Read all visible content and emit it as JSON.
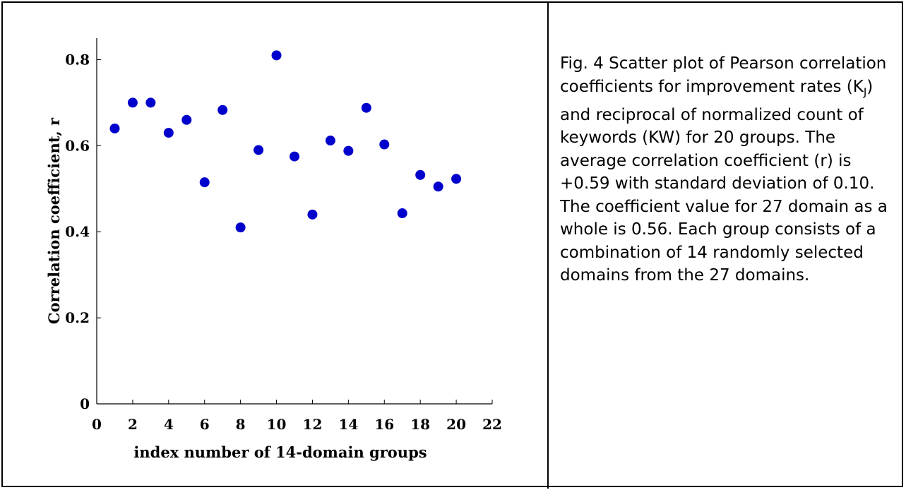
{
  "caption": {
    "text": "Fig. 4 Scatter plot of Pearson correlation coefficients for improvement rates (K",
    "subscript": "J",
    "text_rest": ") and reciprocal of normalized count of keywords (KW) for 20 groups. The average correlation coefficient (r) is +0.59 with standard deviation of 0.10. The coefficient value for 27 domain as a whole is 0.56.  Each group consists of a combination of 14 randomly selected domains from the 27 domains."
  },
  "chart_data": {
    "type": "scatter",
    "title": "",
    "xlabel": "index number of 14-domain groups",
    "ylabel": "Correlation coefficient, r",
    "xlim": [
      0,
      22
    ],
    "ylim": [
      0,
      0.85
    ],
    "xticks": [
      0,
      2,
      4,
      6,
      8,
      10,
      12,
      14,
      16,
      18,
      20,
      22
    ],
    "xtick_labels": [
      "0",
      "2",
      "4",
      "6",
      "8",
      "10",
      "12",
      "14",
      "16",
      "18",
      "20",
      "22"
    ],
    "yticks": [
      0,
      0.2,
      0.4,
      0.6,
      0.8
    ],
    "ytick_labels": [
      "0",
      "0.2",
      "0.4",
      "0.6",
      "0.8"
    ],
    "grid": false,
    "marker_color": "#0000cc",
    "x": [
      1,
      2,
      3,
      4,
      5,
      6,
      7,
      8,
      9,
      10,
      11,
      12,
      13,
      14,
      15,
      16,
      17,
      18,
      19,
      20
    ],
    "y": [
      0.64,
      0.7,
      0.7,
      0.63,
      0.66,
      0.515,
      0.683,
      0.41,
      0.59,
      0.81,
      0.575,
      0.44,
      0.612,
      0.588,
      0.688,
      0.603,
      0.443,
      0.532,
      0.505,
      0.523
    ]
  }
}
